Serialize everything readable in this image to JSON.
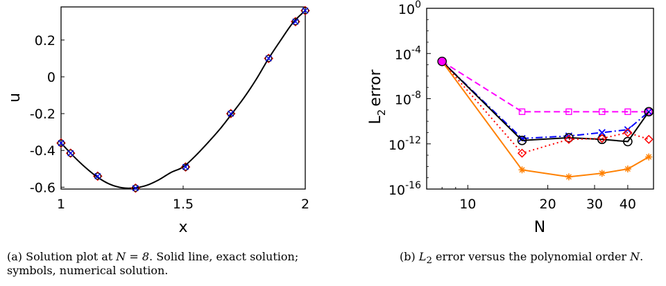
{
  "chart_data": [
    {
      "type": "scatter",
      "xlabel": "x",
      "ylabel": "u",
      "xlim": [
        1,
        2
      ],
      "ylim": [
        -0.61,
        0.38
      ],
      "x_ticks": [
        {
          "v": 1,
          "label": "1"
        },
        {
          "v": 1.5,
          "label": "1.5"
        },
        {
          "v": 2,
          "label": "2"
        }
      ],
      "y_ticks": [
        {
          "v": -0.6,
          "label": "-0.6"
        },
        {
          "v": -0.4,
          "label": "-0.4"
        },
        {
          "v": -0.2,
          "label": "-0.2"
        },
        {
          "v": 0,
          "label": "0"
        },
        {
          "v": 0.2,
          "label": "0.2"
        }
      ],
      "exact_curve": {
        "x": [
          1.0,
          1.05,
          1.1,
          1.15,
          1.2,
          1.25,
          1.3,
          1.35,
          1.4,
          1.45,
          1.5,
          1.55,
          1.6,
          1.65,
          1.7,
          1.75,
          1.8,
          1.85,
          1.9,
          1.95,
          2.0
        ],
        "y": [
          -0.36,
          -0.43,
          -0.493,
          -0.546,
          -0.584,
          -0.603,
          -0.604,
          -0.59,
          -0.56,
          -0.52,
          -0.49,
          -0.43,
          -0.36,
          -0.285,
          -0.2,
          -0.112,
          -0.012,
          0.1,
          0.2,
          0.295,
          0.36
        ]
      },
      "numerical_points": {
        "x": [
          1.0,
          1.039,
          1.15,
          1.305,
          1.51,
          1.695,
          1.85,
          1.96,
          2.0
        ],
        "y": [
          -0.36,
          -0.415,
          -0.54,
          -0.605,
          -0.49,
          -0.2,
          0.1,
          0.3,
          0.36
        ]
      },
      "caption": {
        "label": "(a)",
        "pre": "Solution plot at",
        "math": "N = 8",
        "post": ". Solid line, exact solution; symbols, numerical solution."
      }
    },
    {
      "type": "line",
      "xlabel": "N",
      "ylabel": "L",
      "ylabel_subscript": "2",
      "ylabel_suffix": "error",
      "x_scale": "log",
      "y_scale": "log",
      "xlim": [
        7,
        50
      ],
      "ylim": [
        1e-16,
        1
      ],
      "x_ticks": [
        {
          "v": 10,
          "label": "10"
        },
        {
          "v": 20,
          "label": "20"
        },
        {
          "v": 30,
          "label": "30"
        },
        {
          "v": 40,
          "label": "40"
        }
      ],
      "y_ticks": [
        {
          "v": 1,
          "base": "10",
          "exp": "0"
        },
        {
          "v": 0.0001,
          "base": "10",
          "exp": "-4"
        },
        {
          "v": 1e-08,
          "base": "10",
          "exp": "-8"
        },
        {
          "v": 1e-12,
          "base": "10",
          "exp": "-12"
        },
        {
          "v": 1e-16,
          "base": "10",
          "exp": "-16"
        }
      ],
      "series": [
        {
          "x": [
            8,
            16,
            24,
            32,
            40,
            48
          ],
          "y": [
            2e-05,
            7e-10,
            7e-10,
            7e-10,
            7e-10,
            7e-10
          ],
          "color": "#ff00ff",
          "dash": "9,5",
          "marker": "square"
        },
        {
          "x": [
            8,
            16,
            24,
            32,
            40,
            48
          ],
          "y": [
            2e-05,
            3e-12,
            5e-12,
            1e-11,
            1.8e-11,
            7e-10
          ],
          "color": "#0000ff",
          "dash": "10,4,2,4",
          "marker": "x"
        },
        {
          "x": [
            8,
            16,
            24,
            32,
            40,
            48
          ],
          "y": [
            2e-05,
            2e-12,
            3.5e-12,
            2.5e-12,
            1.6e-12,
            7e-10
          ],
          "color": "#000000",
          "dash": "",
          "marker": "circle"
        },
        {
          "x": [
            8,
            16,
            24,
            32,
            40,
            48
          ],
          "y": [
            2e-05,
            1.5e-13,
            2.5e-12,
            3e-12,
            1e-11,
            2.5e-12
          ],
          "color": "#ff0000",
          "dash": "2,4",
          "marker": "diamond"
        },
        {
          "x": [
            8,
            16,
            24,
            32,
            40,
            48
          ],
          "y": [
            2e-05,
            5e-15,
            1.2e-15,
            2.5e-15,
            6e-15,
            7e-14
          ],
          "color": "#ff8000",
          "dash": "",
          "marker": "asterisk"
        }
      ],
      "caption": {
        "label": "(b)",
        "math_L": "L",
        "math_sub": "2",
        "text": "error versus the polynomial order",
        "math_N": "N",
        "end": "."
      }
    }
  ]
}
